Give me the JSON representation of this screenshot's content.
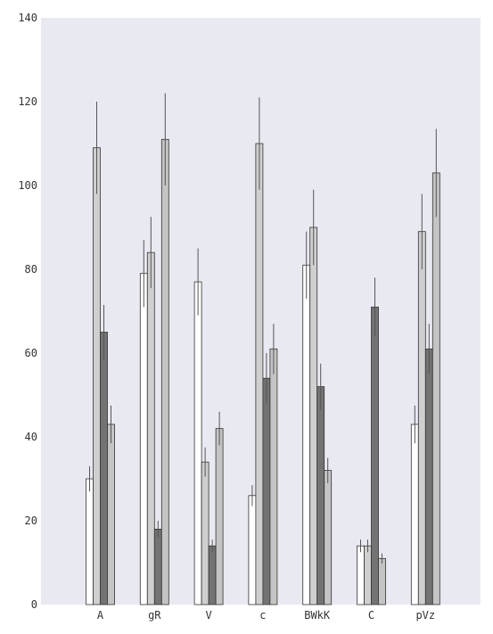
{
  "chart_data": {
    "type": "bar",
    "title": "",
    "xlabel": "",
    "ylabel": "",
    "categories": [
      "A",
      "gR",
      "V",
      "c",
      "BWkK",
      "C",
      "pVz"
    ],
    "ylim": [
      0,
      140
    ],
    "yticks": [
      0,
      20,
      40,
      60,
      80,
      100,
      120,
      140
    ],
    "grid": false,
    "legend": "none",
    "series": [
      {
        "color": "#ffffff",
        "values": [
          30,
          79,
          77,
          26,
          81,
          14,
          43
        ],
        "errors": [
          3,
          8,
          8,
          2.5,
          8,
          1.5,
          4.5
        ]
      },
      {
        "color": "#cfcfcf",
        "values": [
          109,
          84,
          34,
          110,
          90,
          14,
          89
        ],
        "errors": [
          11,
          8.5,
          3.5,
          11,
          9,
          1.5,
          9
        ]
      },
      {
        "color": "#737373",
        "values": [
          65,
          18,
          14,
          54,
          52,
          71,
          61
        ],
        "errors": [
          6.5,
          2,
          1.5,
          6,
          5.5,
          7,
          6
        ]
      },
      {
        "color": "#c4c4c4",
        "values": [
          43,
          111,
          42,
          61,
          32,
          11,
          103
        ],
        "errors": [
          4.5,
          11,
          4,
          6,
          3,
          1.2,
          10.5
        ]
      }
    ]
  },
  "style": {
    "plot_background": "#e9e9f2",
    "bar_edge": "#333333",
    "errorbar_color": "#555555"
  }
}
